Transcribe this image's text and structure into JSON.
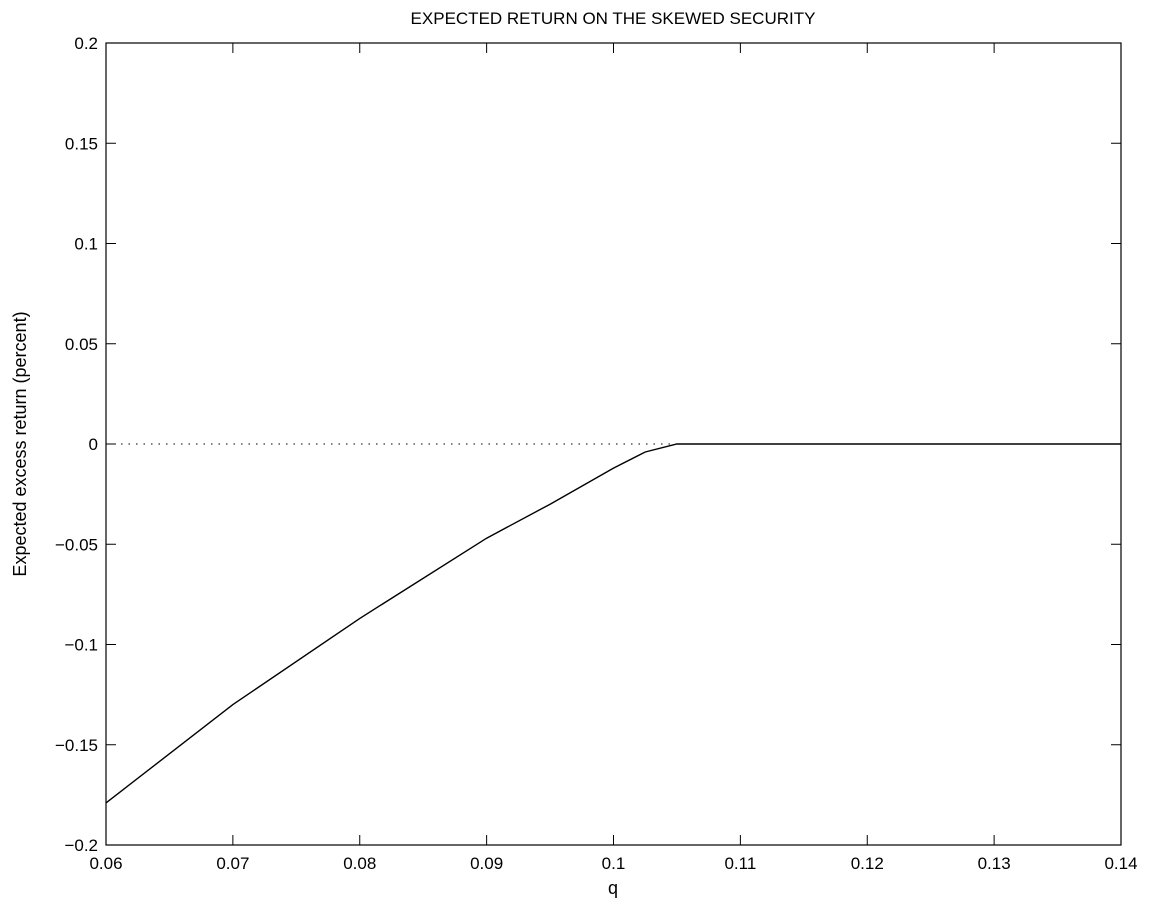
{
  "chart_data": {
    "type": "line",
    "title": "EXPECTED RETURN ON THE SKEWED SECURITY",
    "xlabel": "q",
    "ylabel": "Expected excess return (percent)",
    "xlim": [
      0.06,
      0.14
    ],
    "ylim": [
      -0.2,
      0.2
    ],
    "x_ticks": [
      0.06,
      0.07,
      0.08,
      0.09,
      0.1,
      0.11,
      0.12,
      0.13,
      0.14
    ],
    "x_tick_labels": [
      "0.06",
      "0.07",
      "0.08",
      "0.09",
      "0.1",
      "0.11",
      "0.12",
      "0.13",
      "0.14"
    ],
    "y_ticks": [
      -0.2,
      -0.15,
      -0.1,
      -0.05,
      0,
      0.05,
      0.1,
      0.15,
      0.2
    ],
    "y_tick_labels": [
      "−0.2",
      "−0.15",
      "−0.1",
      "−0.05",
      "0",
      "0.05",
      "0.1",
      "0.15",
      "0.2"
    ],
    "grid": false,
    "reference_line": {
      "y": 0,
      "style": "dotted"
    },
    "series": [
      {
        "x": [
          0.06,
          0.07,
          0.08,
          0.09,
          0.095,
          0.1,
          0.1025,
          0.105,
          0.11,
          0.12,
          0.13,
          0.14
        ],
        "y": [
          -0.179,
          -0.13,
          -0.087,
          -0.047,
          -0.03,
          -0.012,
          -0.004,
          0.0,
          0.0,
          0.0,
          0.0,
          0.0
        ],
        "color": "#000000"
      }
    ]
  }
}
